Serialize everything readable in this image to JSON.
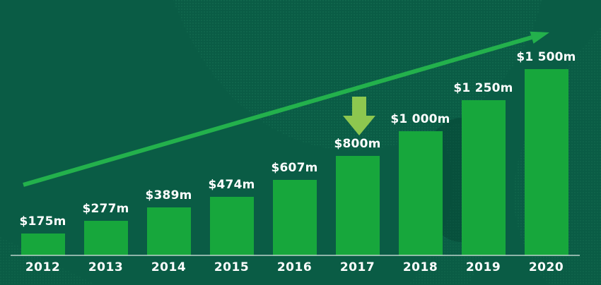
{
  "chart_data": {
    "type": "bar",
    "title": "",
    "categories": [
      "2012",
      "2013",
      "2014",
      "2015",
      "2016",
      "2017",
      "2018",
      "2019",
      "2020"
    ],
    "values": [
      175,
      277,
      389,
      474,
      607,
      800,
      1000,
      1250,
      1500
    ],
    "value_labels": [
      "$175m",
      "$277m",
      "$389m",
      "$474m",
      "$607m",
      "$800m",
      "$1 000m",
      "$1 250m",
      "$1 500m"
    ],
    "unit": "USD millions",
    "xlabel": "",
    "ylabel": "",
    "ylim": [
      0,
      1500
    ],
    "grid": false,
    "legend": "none",
    "annotations": [
      {
        "type": "trend-arrow",
        "direction": "up",
        "spans": "2012 to 2020"
      },
      {
        "type": "down-arrow",
        "points_to_category": "2017"
      }
    ]
  },
  "colors": {
    "background": "#0a5c45",
    "bar": "#17a73c",
    "trend_arrow": "#23b14c",
    "down_arrow": "#8dc74f",
    "axis_line": "#d6e4de",
    "text": "#ffffff",
    "decoration_dots": "#4fc98f"
  }
}
